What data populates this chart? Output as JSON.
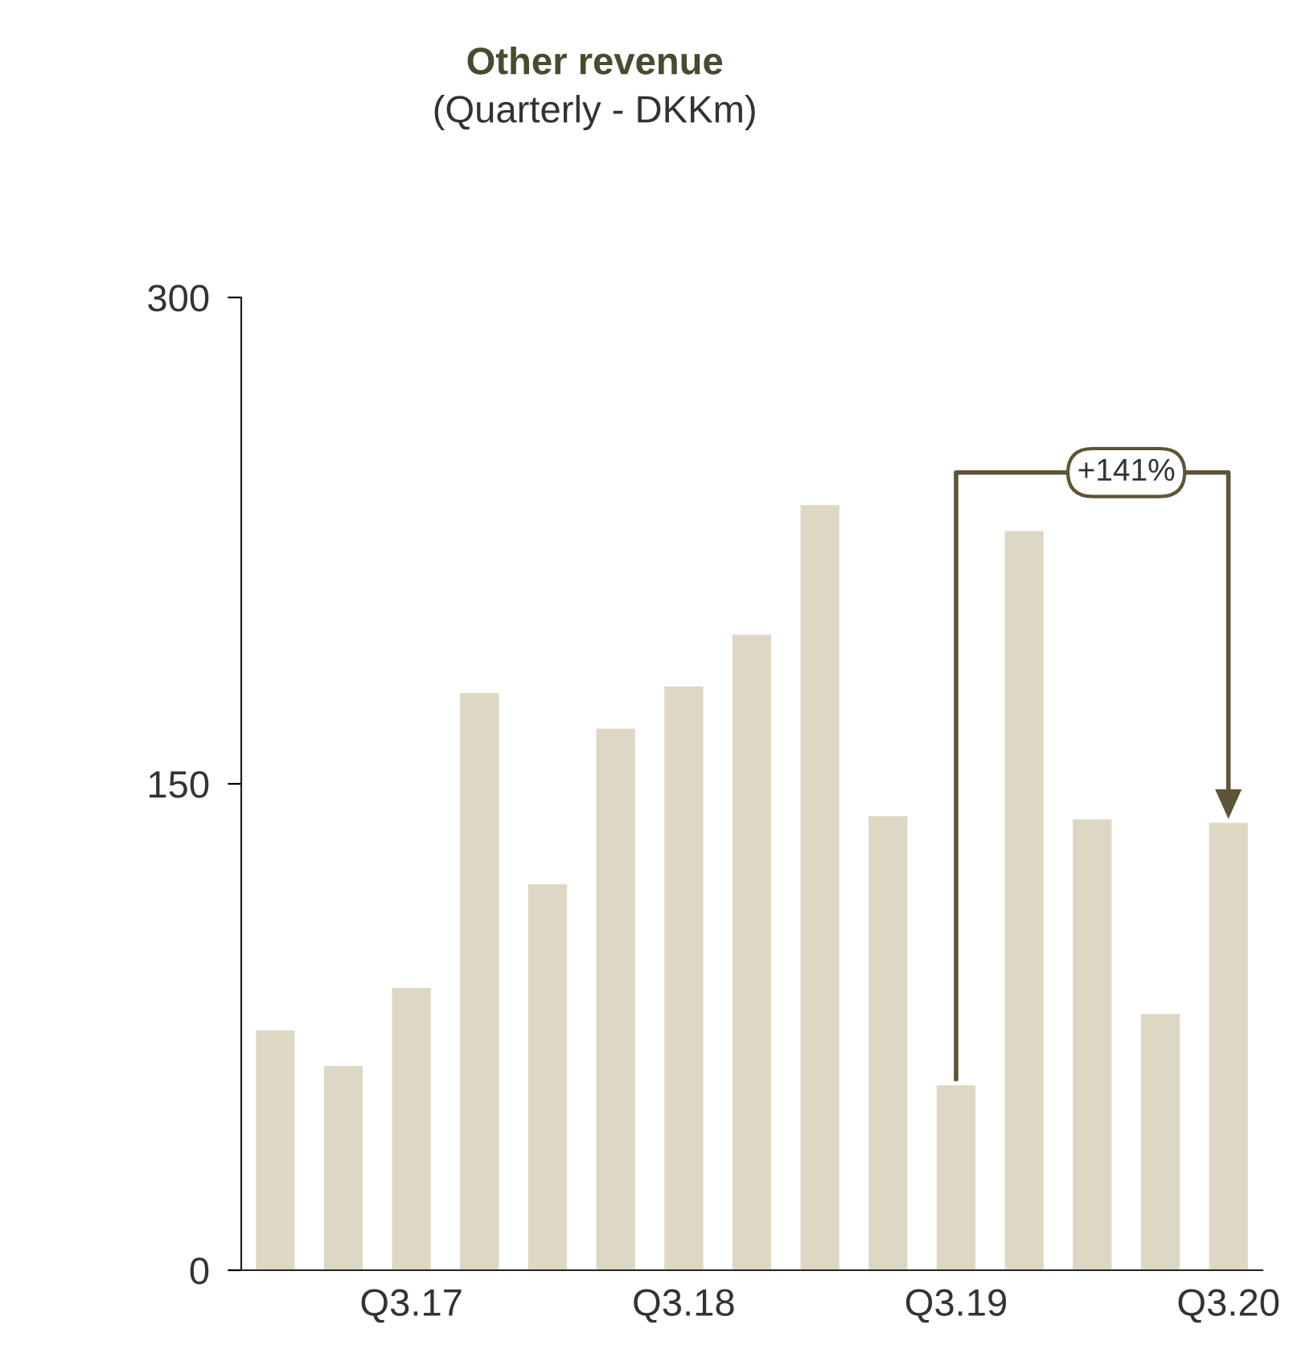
{
  "chart_data": {
    "type": "bar",
    "title": "Other revenue",
    "subtitle": "(Quarterly - DKKm)",
    "categories": [
      null,
      null,
      "Q3.17",
      null,
      null,
      null,
      "Q3.18",
      null,
      null,
      null,
      "Q3.19",
      null,
      null,
      null,
      "Q3.20"
    ],
    "values": [
      74,
      63,
      87,
      178,
      119,
      167,
      180,
      196,
      236,
      140,
      57,
      228,
      139,
      79,
      138
    ],
    "color": "#ddd8c4",
    "ylim": [
      0,
      300
    ],
    "yticks": [
      0,
      150,
      300
    ],
    "grid": false,
    "annotations": [
      "+141%"
    ]
  }
}
